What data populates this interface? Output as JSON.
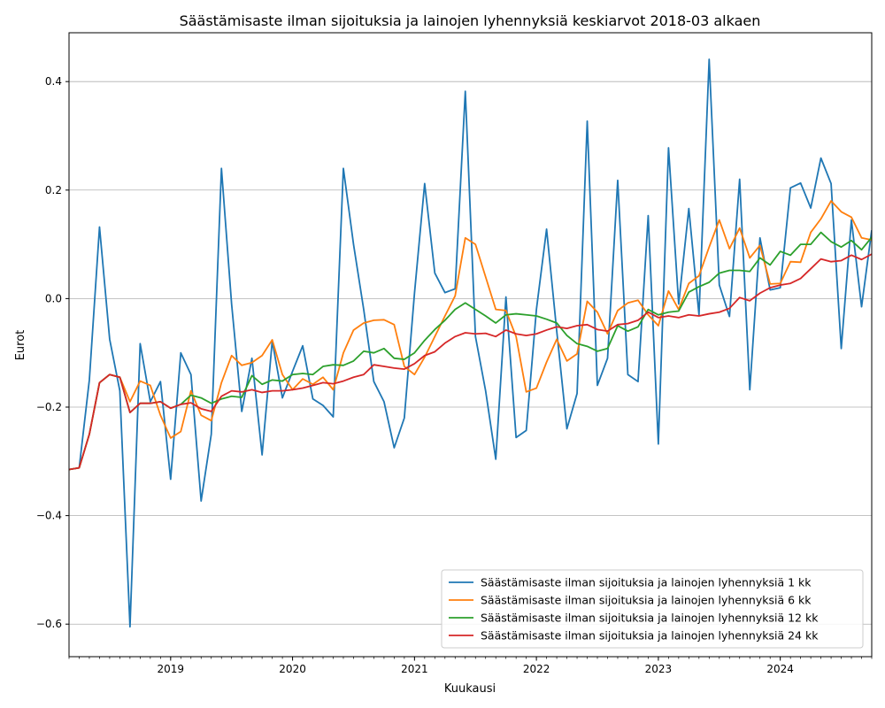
{
  "chart_data": {
    "type": "line",
    "title": "Säästämisaste ilman sijoituksia ja lainojen lyhennyksiä keskiarvot 2018-03 alkaen",
    "xlabel": "Kuukausi",
    "ylabel": "Eurot",
    "x_start": "2018-03",
    "x_end": "2024-10",
    "xlim": [
      "2018-03",
      "2024-10"
    ],
    "ylim": [
      -0.66,
      0.49
    ],
    "x_ticks": [
      "2019",
      "2020",
      "2021",
      "2022",
      "2023",
      "2024"
    ],
    "y_ticks": [
      -0.6,
      -0.4,
      -0.2,
      0.0,
      0.2,
      0.4
    ],
    "y_tick_labels": [
      "−0.6",
      "−0.4",
      "−0.2",
      "0.0",
      "0.2",
      "0.4"
    ],
    "grid": "horizontal",
    "legend_position": "lower-right",
    "series": [
      {
        "name": "Säästämisaste ilman sijoituksia ja lainojen lyhennyksiä 1 kk",
        "color": "#1f77b4",
        "values": [
          -0.315,
          -0.312,
          -0.15,
          0.132,
          -0.075,
          -0.17,
          -0.605,
          -0.083,
          -0.19,
          -0.153,
          -0.333,
          -0.1,
          -0.14,
          -0.373,
          -0.25,
          0.24,
          -0.01,
          -0.208,
          -0.11,
          -0.288,
          -0.078,
          -0.183,
          -0.134,
          -0.087,
          -0.185,
          -0.197,
          -0.218,
          0.24,
          0.1,
          -0.02,
          -0.153,
          -0.19,
          -0.275,
          -0.22,
          0.01,
          0.212,
          0.047,
          0.011,
          0.018,
          0.382,
          -0.07,
          -0.17,
          -0.296,
          0.003,
          -0.256,
          -0.243,
          -0.02,
          0.128,
          -0.06,
          -0.24,
          -0.175,
          0.327,
          -0.16,
          -0.11,
          0.218,
          -0.14,
          -0.153,
          0.153,
          -0.268,
          0.278,
          -0.01,
          0.166,
          -0.03,
          0.441,
          0.025,
          -0.033,
          0.22,
          -0.168,
          0.112,
          0.016,
          0.02,
          0.204,
          0.213,
          0.167,
          0.259,
          0.212,
          -0.092,
          0.145,
          -0.015,
          0.126
        ]
      },
      {
        "name": "Säästämisaste ilman sijoituksia ja lainojen lyhennyksiä 6 kk",
        "color": "#ff7f0e",
        "values": [
          -0.315,
          -0.312,
          -0.25,
          -0.155,
          -0.14,
          -0.145,
          -0.19,
          -0.152,
          -0.16,
          -0.215,
          -0.257,
          -0.245,
          -0.17,
          -0.215,
          -0.225,
          -0.155,
          -0.105,
          -0.123,
          -0.118,
          -0.105,
          -0.076,
          -0.14,
          -0.168,
          -0.148,
          -0.158,
          -0.145,
          -0.168,
          -0.1,
          -0.058,
          -0.045,
          -0.04,
          -0.039,
          -0.048,
          -0.125,
          -0.14,
          -0.108,
          -0.07,
          -0.032,
          0.005,
          0.112,
          0.1,
          0.04,
          -0.02,
          -0.022,
          -0.07,
          -0.172,
          -0.165,
          -0.117,
          -0.075,
          -0.115,
          -0.102,
          -0.005,
          -0.025,
          -0.065,
          -0.022,
          -0.008,
          -0.003,
          -0.03,
          -0.05,
          0.014,
          -0.02,
          0.028,
          0.042,
          0.095,
          0.145,
          0.092,
          0.13,
          0.075,
          0.098,
          0.027,
          0.028,
          0.068,
          0.067,
          0.122,
          0.147,
          0.18,
          0.16,
          0.15,
          0.112,
          0.108
        ]
      },
      {
        "name": "Säästämisaste ilman sijoituksia ja lainojen lyhennyksiä 12 kk",
        "color": "#2ca02c",
        "values": [
          -0.315,
          -0.312,
          -0.25,
          -0.155,
          -0.14,
          -0.145,
          -0.21,
          -0.193,
          -0.193,
          -0.19,
          -0.202,
          -0.195,
          -0.178,
          -0.183,
          -0.193,
          -0.185,
          -0.18,
          -0.182,
          -0.142,
          -0.158,
          -0.15,
          -0.152,
          -0.14,
          -0.138,
          -0.14,
          -0.125,
          -0.122,
          -0.123,
          -0.115,
          -0.097,
          -0.1,
          -0.092,
          -0.11,
          -0.112,
          -0.1,
          -0.077,
          -0.057,
          -0.04,
          -0.02,
          -0.008,
          -0.02,
          -0.032,
          -0.045,
          -0.03,
          -0.028,
          -0.03,
          -0.032,
          -0.038,
          -0.045,
          -0.068,
          -0.083,
          -0.088,
          -0.097,
          -0.092,
          -0.05,
          -0.06,
          -0.052,
          -0.02,
          -0.03,
          -0.025,
          -0.023,
          0.012,
          0.022,
          0.03,
          0.047,
          0.052,
          0.052,
          0.05,
          0.075,
          0.062,
          0.087,
          0.08,
          0.1,
          0.1,
          0.122,
          0.105,
          0.095,
          0.107,
          0.09,
          0.113
        ]
      },
      {
        "name": "Säästämisaste ilman sijoituksia ja lainojen lyhennyksiä 24 kk",
        "color": "#d62728",
        "values": [
          -0.315,
          -0.312,
          -0.25,
          -0.155,
          -0.14,
          -0.145,
          -0.21,
          -0.193,
          -0.193,
          -0.19,
          -0.202,
          -0.195,
          -0.192,
          -0.203,
          -0.208,
          -0.18,
          -0.17,
          -0.172,
          -0.168,
          -0.173,
          -0.17,
          -0.17,
          -0.168,
          -0.165,
          -0.16,
          -0.155,
          -0.157,
          -0.152,
          -0.145,
          -0.14,
          -0.122,
          -0.125,
          -0.128,
          -0.13,
          -0.12,
          -0.105,
          -0.098,
          -0.082,
          -0.07,
          -0.063,
          -0.065,
          -0.064,
          -0.07,
          -0.058,
          -0.065,
          -0.068,
          -0.065,
          -0.058,
          -0.052,
          -0.055,
          -0.05,
          -0.048,
          -0.057,
          -0.06,
          -0.048,
          -0.046,
          -0.04,
          -0.025,
          -0.035,
          -0.032,
          -0.035,
          -0.03,
          -0.032,
          -0.028,
          -0.025,
          -0.018,
          0.002,
          -0.004,
          0.01,
          0.02,
          0.025,
          0.028,
          0.037,
          0.055,
          0.073,
          0.068,
          0.07,
          0.08,
          0.072,
          0.082
        ]
      }
    ]
  }
}
